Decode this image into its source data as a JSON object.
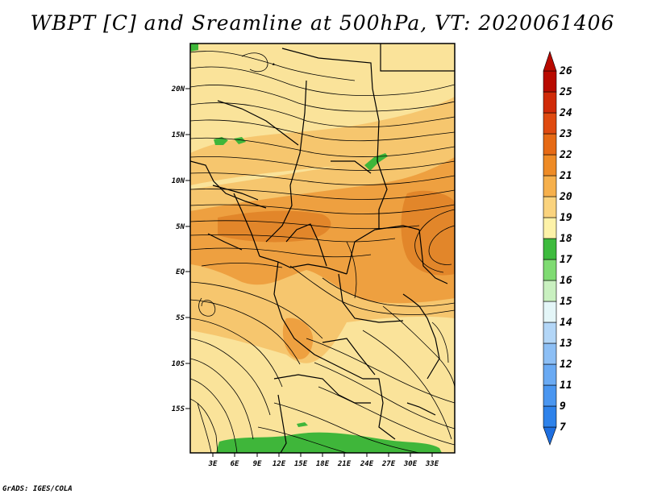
{
  "title": "WBPT [C] and Sreamline at 500hPa, VT: 2020061406",
  "credit": "GrADS: IGES/COLA",
  "map": {
    "lat_labels": [
      "20N",
      "15N",
      "10N",
      "5N",
      "EQ",
      "5S",
      "10S",
      "15S"
    ],
    "lon_labels": [
      "3E",
      "6E",
      "9E",
      "12E",
      "15E",
      "18E",
      "21E",
      "24E",
      "27E",
      "30E",
      "33E"
    ],
    "lon_range": [
      0,
      36
    ],
    "lat_range": [
      -20,
      24.5
    ],
    "variable": "Wet-bulb potential temperature at 500hPa with streamlines"
  },
  "colorbar": {
    "labels": [
      "7",
      "9",
      "11",
      "12",
      "13",
      "14",
      "15",
      "16",
      "17",
      "18",
      "19",
      "20",
      "21",
      "22",
      "23",
      "24",
      "25",
      "26"
    ],
    "colors": [
      "#1e6fe0",
      "#2e82ea",
      "#4a96f0",
      "#6aaaf3",
      "#8dbff5",
      "#b3d6f7",
      "#e4f6f8",
      "#c9f0c0",
      "#7fdb72",
      "#3ebb3e",
      "#fdf2a8",
      "#fad37e",
      "#f6b04c",
      "#ee8b26",
      "#e66a15",
      "#df4a10",
      "#d02a08",
      "#b80a00"
    ]
  },
  "colors": {
    "warm_pale": "#fae39a",
    "warm_light": "#f6c66e",
    "warm_mid": "#eea040",
    "warm_deep": "#e2862a",
    "green": "#3fb63a",
    "lines": "#000000"
  }
}
